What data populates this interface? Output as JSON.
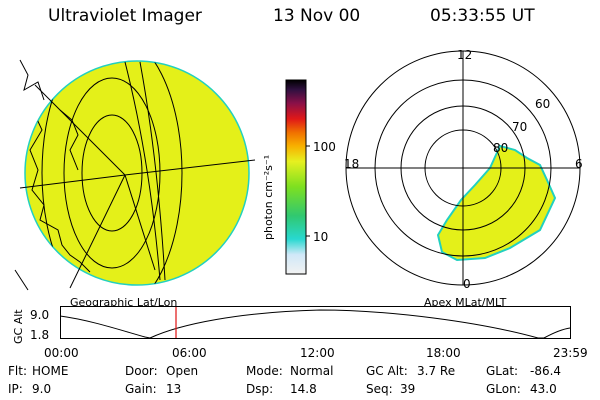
{
  "header": {
    "instrument": "Ultraviolet Imager",
    "date": "13 Nov 00",
    "time": "05:33:55 UT"
  },
  "left_panel": {
    "caption": "Geographic Lat/Lon"
  },
  "right_panel": {
    "caption": "Apex MLat/MLT",
    "mlt_labels": {
      "top": "12",
      "left": "18",
      "right": "6",
      "bottom": "0"
    },
    "lat_labels": [
      "60",
      "70",
      "80"
    ]
  },
  "colorbar": {
    "label": "photon cm⁻²s⁻¹",
    "ticks": [
      "100",
      "10"
    ],
    "scale": "log"
  },
  "timeline": {
    "ylabel": "GC Alt",
    "y_ticks": [
      "9.0",
      "1.8"
    ],
    "x_ticks": [
      "00:00",
      "06:00",
      "12:00",
      "18:00",
      "23:59"
    ],
    "marker_time": "05:33:55"
  },
  "footer": {
    "row1": [
      {
        "key": "Flt:",
        "value": "HOME"
      },
      {
        "key": "Door:",
        "value": "Open"
      },
      {
        "key": "Mode:",
        "value": "Normal"
      },
      {
        "key": "GC Alt:",
        "value": "3.7 Re"
      },
      {
        "key": "GLat:",
        "value": "-86.4"
      }
    ],
    "row2": [
      {
        "key": "IP:",
        "value": "9.0"
      },
      {
        "key": "Gain:",
        "value": "13"
      },
      {
        "key": "Dsp:",
        "value": "14.8"
      },
      {
        "key": "Seq:",
        "value": "39"
      },
      {
        "key": "GLon:",
        "value": "43.0"
      }
    ]
  },
  "colors": {
    "emission": "#e4f019",
    "emission_edge": "#22d0c0",
    "marker": "#e01010"
  }
}
